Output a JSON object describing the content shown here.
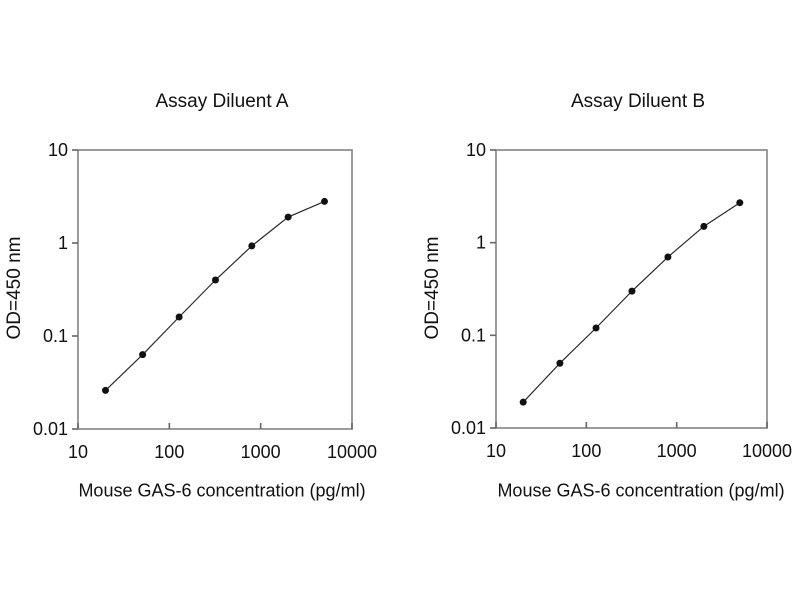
{
  "figure": {
    "background": "#ffffff"
  },
  "chart_data": [
    {
      "type": "line",
      "title": "Assay Diluent A",
      "xlabel": "Mouse GAS-6 concentration (pg/ml)",
      "ylabel": "OD=450 nm",
      "x_scale": "log",
      "y_scale": "log",
      "xlim": [
        10,
        10000
      ],
      "ylim": [
        0.01,
        10
      ],
      "grid": false,
      "legend": "none",
      "x_ticks": [
        {
          "value": 10,
          "label": "10"
        },
        {
          "value": 100,
          "label": "100"
        },
        {
          "value": 1000,
          "label": "1000"
        },
        {
          "value": 10000,
          "label": "10000"
        }
      ],
      "y_ticks": [
        {
          "value": 10,
          "label": "10"
        },
        {
          "value": 1,
          "label": "1"
        },
        {
          "value": 0.1,
          "label": "0.1"
        },
        {
          "value": 0.01,
          "label": "0.01"
        }
      ],
      "series": [
        {
          "name": "standard-curve",
          "marker": "filled-circle",
          "x": [
            20,
            51,
            128,
            320,
            800,
            2000,
            5000
          ],
          "y": [
            0.026,
            0.063,
            0.16,
            0.4,
            0.93,
            1.9,
            2.8
          ]
        }
      ],
      "colors": {
        "frame": "#8a8a8a",
        "tick": "#666666",
        "line": "#2a2a2a",
        "marker": "#111111",
        "text": "#111111"
      }
    },
    {
      "type": "line",
      "title": "Assay Diluent B",
      "xlabel": "Mouse GAS-6 concentration (pg/ml)",
      "ylabel": "OD=450 nm",
      "x_scale": "log",
      "y_scale": "log",
      "xlim": [
        10,
        10000
      ],
      "ylim": [
        0.01,
        10
      ],
      "grid": false,
      "legend": "none",
      "x_ticks": [
        {
          "value": 10,
          "label": "10"
        },
        {
          "value": 100,
          "label": "100"
        },
        {
          "value": 1000,
          "label": "1000"
        },
        {
          "value": 10000,
          "label": "10000"
        }
      ],
      "y_ticks": [
        {
          "value": 10,
          "label": "10"
        },
        {
          "value": 1,
          "label": "1"
        },
        {
          "value": 0.1,
          "label": "0.1"
        },
        {
          "value": 0.01,
          "label": "0.01"
        }
      ],
      "series": [
        {
          "name": "standard-curve",
          "marker": "filled-circle",
          "x": [
            20,
            51,
            128,
            320,
            800,
            2000,
            5000
          ],
          "y": [
            0.019,
            0.05,
            0.12,
            0.3,
            0.7,
            1.5,
            2.7
          ]
        }
      ],
      "colors": {
        "frame": "#8a8a8a",
        "tick": "#666666",
        "line": "#2a2a2a",
        "marker": "#111111",
        "text": "#111111"
      }
    }
  ]
}
